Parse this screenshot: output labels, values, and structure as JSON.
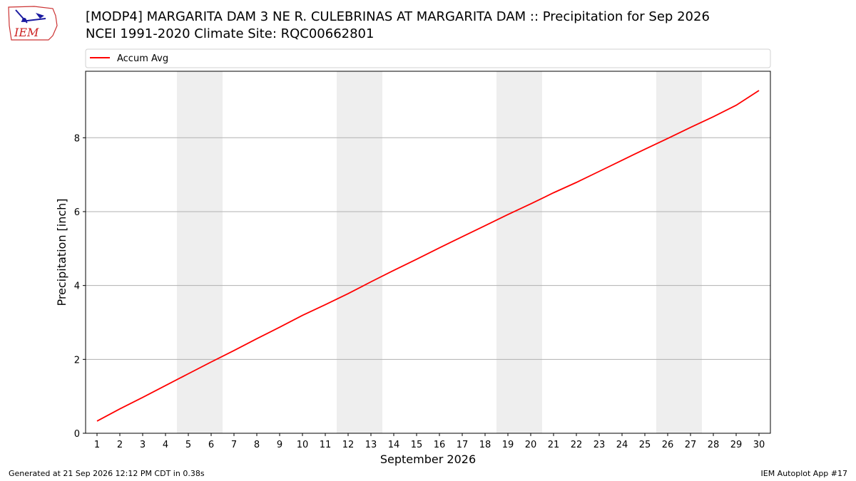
{
  "header": {
    "logo_text": "IEM",
    "title_line1": "[MODP4] MARGARITA DAM 3 NE R. CULEBRINAS AT MARGARITA DAM :: Precipitation for Sep 2026",
    "title_line2": "NCEI 1991-2020 Climate Site: RQC00662801"
  },
  "footer": {
    "left": "Generated at 21 Sep 2026 12:12 PM CDT in 0.38s",
    "right": "IEM Autoplot App #17"
  },
  "chart_data": {
    "type": "line",
    "title": "[MODP4] MARGARITA DAM 3 NE R. CULEBRINAS AT MARGARITA DAM :: Precipitation for Sep 2026",
    "subtitle": "NCEI 1991-2020 Climate Site: RQC00662801",
    "xlabel": "September 2026",
    "ylabel": "Precipitation [inch]",
    "x": [
      1,
      2,
      3,
      4,
      5,
      6,
      7,
      8,
      9,
      10,
      11,
      12,
      13,
      14,
      15,
      16,
      17,
      18,
      19,
      20,
      21,
      22,
      23,
      24,
      25,
      26,
      27,
      28,
      29,
      30
    ],
    "series": [
      {
        "name": "Accum Avg",
        "color": "#ff0000",
        "values": [
          0.33,
          0.66,
          0.97,
          1.29,
          1.61,
          1.93,
          2.24,
          2.56,
          2.87,
          3.19,
          3.48,
          3.78,
          4.1,
          4.41,
          4.71,
          5.02,
          5.32,
          5.62,
          5.92,
          6.21,
          6.51,
          6.79,
          7.09,
          7.39,
          7.69,
          7.98,
          8.28,
          8.57,
          8.88,
          9.28
        ]
      }
    ],
    "xlim": [
      0.5,
      30.5
    ],
    "ylim": [
      0,
      9.8
    ],
    "xticks": [
      1,
      2,
      3,
      4,
      5,
      6,
      7,
      8,
      9,
      10,
      11,
      12,
      13,
      14,
      15,
      16,
      17,
      18,
      19,
      20,
      21,
      22,
      23,
      24,
      25,
      26,
      27,
      28,
      29,
      30
    ],
    "yticks": [
      0,
      2,
      4,
      6,
      8
    ],
    "grid": "y",
    "legend_position": "top",
    "weekend_bands": [
      [
        5,
        6
      ],
      [
        12,
        13
      ],
      [
        19,
        20
      ],
      [
        26,
        27
      ]
    ],
    "band_color": "#eeeeee"
  }
}
